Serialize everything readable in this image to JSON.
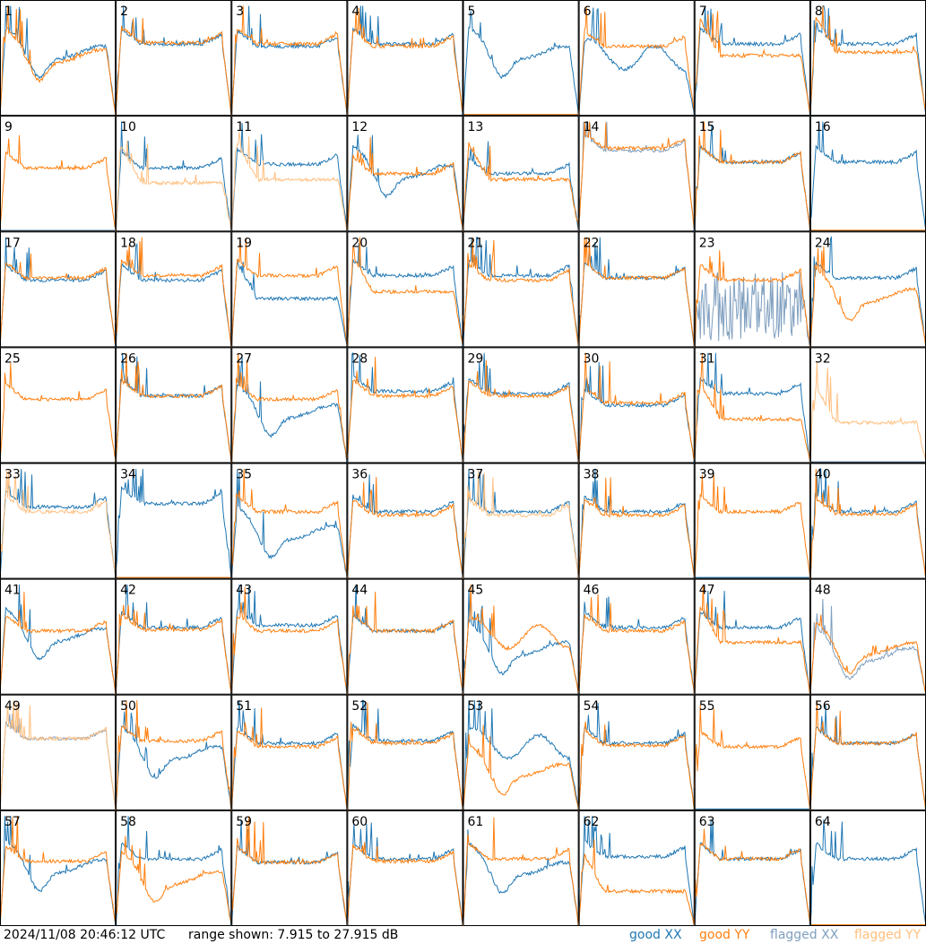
{
  "footer": {
    "timestamp": "2024/11/08 20:46:12 UTC",
    "range": "range shown: 7.915 to 27.915 dB"
  },
  "legend": [
    {
      "label": "good XX",
      "color": "#1f77b4"
    },
    {
      "label": "good YY",
      "color": "#ff7f0e"
    },
    {
      "label": "flagged XX",
      "color": "#7f9fbf"
    },
    {
      "label": "flagged YY",
      "color": "#ffbf7f"
    }
  ],
  "chart_data": {
    "type": "line",
    "grid": {
      "rows": 8,
      "cols": 8
    },
    "ylim": [
      7.915,
      27.915
    ],
    "units": "dB",
    "panels": [
      {
        "id": "1",
        "xx": "good",
        "yy": "good",
        "xx_shape": "dip",
        "yy_shape": "dip",
        "xx_level": 0.55,
        "yy_level": 0.52
      },
      {
        "id": "2",
        "xx": "good",
        "yy": "good",
        "xx_shape": "flat",
        "yy_shape": "flat",
        "xx_level": 0.62,
        "yy_level": 0.63
      },
      {
        "id": "3",
        "xx": "good",
        "yy": "good",
        "xx_shape": "flat",
        "yy_shape": "flat",
        "xx_level": 0.6,
        "yy_level": 0.62
      },
      {
        "id": "4",
        "xx": "good",
        "yy": "good",
        "xx_shape": "flat",
        "yy_shape": "flat",
        "xx_level": 0.62,
        "yy_level": 0.6
      },
      {
        "id": "5",
        "xx": "good",
        "yy": "good",
        "xx_shape": "dip",
        "yy_shape": "dead",
        "xx_level": 0.55,
        "yy_level": 0.0
      },
      {
        "id": "6",
        "xx": "good",
        "yy": "good",
        "xx_shape": "wave",
        "yy_shape": "flat",
        "xx_level": 0.5,
        "yy_level": 0.6
      },
      {
        "id": "7",
        "xx": "good",
        "yy": "good",
        "xx_shape": "flat",
        "yy_shape": "lowflat",
        "xx_level": 0.62,
        "yy_level": 0.52
      },
      {
        "id": "8",
        "xx": "good",
        "yy": "good",
        "xx_shape": "flat",
        "yy_shape": "lowflat",
        "xx_level": 0.62,
        "yy_level": 0.55
      },
      {
        "id": "9",
        "xx": "flagged",
        "yy": "good",
        "xx_shape": "dead",
        "yy_shape": "flat",
        "xx_level": 0.0,
        "yy_level": 0.55
      },
      {
        "id": "10",
        "xx": "good",
        "yy": "flagged",
        "xx_shape": "flat",
        "yy_shape": "lowflat",
        "xx_level": 0.55,
        "yy_level": 0.42
      },
      {
        "id": "11",
        "xx": "good",
        "yy": "flagged",
        "xx_shape": "flat",
        "yy_shape": "lowflat",
        "xx_level": 0.58,
        "yy_level": 0.45
      },
      {
        "id": "12",
        "xx": "good",
        "yy": "good",
        "xx_shape": "dip",
        "yy_shape": "flat",
        "xx_level": 0.52,
        "yy_level": 0.5
      },
      {
        "id": "13",
        "xx": "good",
        "yy": "good",
        "xx_shape": "flat",
        "yy_shape": "lowflat",
        "xx_level": 0.5,
        "yy_level": 0.45
      },
      {
        "id": "14",
        "xx": "flagged",
        "yy": "good",
        "xx_shape": "flat",
        "yy_shape": "flat",
        "xx_level": 0.7,
        "yy_level": 0.72
      },
      {
        "id": "15",
        "xx": "good",
        "yy": "good",
        "xx_shape": "flat",
        "yy_shape": "flat",
        "xx_level": 0.6,
        "yy_level": 0.6
      },
      {
        "id": "16",
        "xx": "good",
        "yy": "good",
        "xx_shape": "flat",
        "yy_shape": "dead",
        "xx_level": 0.6,
        "yy_level": 0.0
      },
      {
        "id": "17",
        "xx": "good",
        "yy": "good",
        "xx_shape": "flat",
        "yy_shape": "flat",
        "xx_level": 0.58,
        "yy_level": 0.6
      },
      {
        "id": "18",
        "xx": "good",
        "yy": "good",
        "xx_shape": "flat",
        "yy_shape": "flat",
        "xx_level": 0.58,
        "yy_level": 0.62
      },
      {
        "id": "19",
        "xx": "good",
        "yy": "good",
        "xx_shape": "lowflat",
        "yy_shape": "flat",
        "xx_level": 0.42,
        "yy_level": 0.62
      },
      {
        "id": "20",
        "xx": "good",
        "yy": "good",
        "xx_shape": "flat",
        "yy_shape": "lowflat",
        "xx_level": 0.62,
        "yy_level": 0.48
      },
      {
        "id": "21",
        "xx": "good",
        "yy": "good",
        "xx_shape": "flat",
        "yy_shape": "flat",
        "xx_level": 0.62,
        "yy_level": 0.58
      },
      {
        "id": "22",
        "xx": "good",
        "yy": "good",
        "xx_shape": "flat",
        "yy_shape": "flat",
        "xx_level": 0.6,
        "yy_level": 0.6
      },
      {
        "id": "23",
        "xx": "flagged",
        "yy": "good",
        "xx_shape": "noise",
        "yy_shape": "flat",
        "xx_level": 0.35,
        "yy_level": 0.58
      },
      {
        "id": "24",
        "xx": "good",
        "yy": "good",
        "xx_shape": "flat",
        "yy_shape": "dip",
        "xx_level": 0.6,
        "yy_level": 0.45
      },
      {
        "id": "25",
        "xx": "good",
        "yy": "good",
        "xx_shape": "none",
        "yy_shape": "flat",
        "xx_level": 0.55,
        "yy_level": 0.55
      },
      {
        "id": "26",
        "xx": "good",
        "yy": "good",
        "xx_shape": "flat",
        "yy_shape": "flat",
        "xx_level": 0.58,
        "yy_level": 0.58
      },
      {
        "id": "27",
        "xx": "good",
        "yy": "good",
        "xx_shape": "dip",
        "yy_shape": "flat",
        "xx_level": 0.45,
        "yy_level": 0.55
      },
      {
        "id": "28",
        "xx": "good",
        "yy": "good",
        "xx_shape": "flat",
        "yy_shape": "flat",
        "xx_level": 0.62,
        "yy_level": 0.58
      },
      {
        "id": "29",
        "xx": "good",
        "yy": "good",
        "xx_shape": "flat",
        "yy_shape": "flat",
        "xx_level": 0.6,
        "yy_level": 0.58
      },
      {
        "id": "30",
        "xx": "good",
        "yy": "good",
        "xx_shape": "flat",
        "yy_shape": "flat",
        "xx_level": 0.5,
        "yy_level": 0.52
      },
      {
        "id": "31",
        "xx": "good",
        "yy": "good",
        "xx_shape": "flat",
        "yy_shape": "lowflat",
        "xx_level": 0.6,
        "yy_level": 0.38
      },
      {
        "id": "32",
        "xx": "flagged",
        "yy": "flagged",
        "xx_shape": "dead",
        "yy_shape": "lowflat",
        "xx_level": 0.0,
        "yy_level": 0.35
      },
      {
        "id": "33",
        "xx": "good",
        "yy": "flagged",
        "xx_shape": "flat",
        "yy_shape": "flat",
        "xx_level": 0.62,
        "yy_level": 0.58
      },
      {
        "id": "34",
        "xx": "good",
        "yy": "good",
        "xx_shape": "flat",
        "yy_shape": "dead",
        "xx_level": 0.65,
        "yy_level": 0.0
      },
      {
        "id": "35",
        "xx": "good",
        "yy": "good",
        "xx_shape": "dip",
        "yy_shape": "flat",
        "xx_level": 0.4,
        "yy_level": 0.58
      },
      {
        "id": "36",
        "xx": "good",
        "yy": "good",
        "xx_shape": "flat",
        "yy_shape": "flat",
        "xx_level": 0.58,
        "yy_level": 0.55
      },
      {
        "id": "37",
        "xx": "good",
        "yy": "flagged",
        "xx_shape": "flat",
        "yy_shape": "flat",
        "xx_level": 0.58,
        "yy_level": 0.55
      },
      {
        "id": "38",
        "xx": "good",
        "yy": "good",
        "xx_shape": "flat",
        "yy_shape": "flat",
        "xx_level": 0.58,
        "yy_level": 0.55
      },
      {
        "id": "39",
        "xx": "good",
        "yy": "good",
        "xx_shape": "dead",
        "yy_shape": "flat",
        "xx_level": 0.0,
        "yy_level": 0.58
      },
      {
        "id": "40",
        "xx": "good",
        "yy": "good",
        "xx_shape": "flat",
        "yy_shape": "flat",
        "xx_level": 0.58,
        "yy_level": 0.56
      },
      {
        "id": "41",
        "xx": "good",
        "yy": "good",
        "xx_shape": "dip",
        "yy_shape": "flat",
        "xx_level": 0.52,
        "yy_level": 0.55
      },
      {
        "id": "42",
        "xx": "good",
        "yy": "good",
        "xx_shape": "flat",
        "yy_shape": "flat",
        "xx_level": 0.58,
        "yy_level": 0.56
      },
      {
        "id": "43",
        "xx": "good",
        "yy": "good",
        "xx_shape": "flat",
        "yy_shape": "flat",
        "xx_level": 0.6,
        "yy_level": 0.55
      },
      {
        "id": "44",
        "xx": "good",
        "yy": "good",
        "xx_shape": "flat",
        "yy_shape": "flat",
        "xx_level": 0.55,
        "yy_level": 0.55
      },
      {
        "id": "45",
        "xx": "good",
        "yy": "good",
        "xx_shape": "dip",
        "yy_shape": "wave",
        "xx_level": 0.4,
        "yy_level": 0.5
      },
      {
        "id": "46",
        "xx": "good",
        "yy": "good",
        "xx_shape": "flat",
        "yy_shape": "flat",
        "xx_level": 0.58,
        "yy_level": 0.55
      },
      {
        "id": "47",
        "xx": "good",
        "yy": "good",
        "xx_shape": "flat",
        "yy_shape": "lowflat",
        "xx_level": 0.58,
        "yy_level": 0.45
      },
      {
        "id": "48",
        "xx": "flagged",
        "yy": "good",
        "xx_shape": "dip",
        "yy_shape": "dip",
        "xx_level": 0.35,
        "yy_level": 0.4
      },
      {
        "id": "49",
        "xx": "flagged",
        "yy": "flagged",
        "xx_shape": "flat",
        "yy_shape": "flat",
        "xx_level": 0.62,
        "yy_level": 0.62
      },
      {
        "id": "50",
        "xx": "good",
        "yy": "good",
        "xx_shape": "dip",
        "yy_shape": "flat",
        "xx_level": 0.5,
        "yy_level": 0.6
      },
      {
        "id": "51",
        "xx": "good",
        "yy": "good",
        "xx_shape": "flat",
        "yy_shape": "flat",
        "xx_level": 0.58,
        "yy_level": 0.55
      },
      {
        "id": "52",
        "xx": "good",
        "yy": "good",
        "xx_shape": "flat",
        "yy_shape": "flat",
        "xx_level": 0.6,
        "yy_level": 0.58
      },
      {
        "id": "53",
        "xx": "good",
        "yy": "good",
        "xx_shape": "wave",
        "yy_shape": "dip",
        "xx_level": 0.55,
        "yy_level": 0.35
      },
      {
        "id": "54",
        "xx": "good",
        "yy": "good",
        "xx_shape": "flat",
        "yy_shape": "flat",
        "xx_level": 0.58,
        "yy_level": 0.56
      },
      {
        "id": "55",
        "xx": "good",
        "yy": "good",
        "xx_shape": "dead",
        "yy_shape": "flat",
        "xx_level": 0.0,
        "yy_level": 0.55
      },
      {
        "id": "56",
        "xx": "good",
        "yy": "good",
        "xx_shape": "flat",
        "yy_shape": "flat",
        "xx_level": 0.58,
        "yy_level": 0.58
      },
      {
        "id": "57",
        "xx": "good",
        "yy": "good",
        "xx_shape": "dip",
        "yy_shape": "flat",
        "xx_level": 0.52,
        "yy_level": 0.56
      },
      {
        "id": "58",
        "xx": "good",
        "yy": "good",
        "xx_shape": "flat",
        "yy_shape": "dip",
        "xx_level": 0.58,
        "yy_level": 0.42
      },
      {
        "id": "59",
        "xx": "good",
        "yy": "good",
        "xx_shape": "flat",
        "yy_shape": "flat",
        "xx_level": 0.55,
        "yy_level": 0.55
      },
      {
        "id": "60",
        "xx": "good",
        "yy": "good",
        "xx_shape": "flat",
        "yy_shape": "flat",
        "xx_level": 0.58,
        "yy_level": 0.56
      },
      {
        "id": "61",
        "xx": "good",
        "yy": "good",
        "xx_shape": "dip",
        "yy_shape": "flat",
        "xx_level": 0.5,
        "yy_level": 0.58
      },
      {
        "id": "62",
        "xx": "good",
        "yy": "good",
        "xx_shape": "flat",
        "yy_shape": "lowflat",
        "xx_level": 0.6,
        "yy_level": 0.3
      },
      {
        "id": "63",
        "xx": "good",
        "yy": "good",
        "xx_shape": "flat",
        "yy_shape": "flat",
        "xx_level": 0.58,
        "yy_level": 0.58
      },
      {
        "id": "64",
        "xx": "good",
        "yy": "good",
        "xx_shape": "flat",
        "yy_shape": "dead",
        "xx_level": 0.58,
        "yy_level": 0.0
      }
    ]
  }
}
